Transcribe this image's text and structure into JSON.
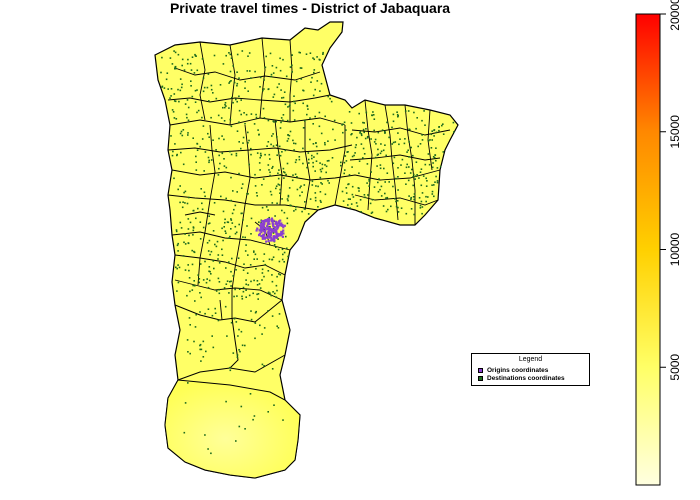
{
  "title": "Private travel times - District of Jabaquara",
  "legend": {
    "title": "Legend",
    "items": [
      {
        "label": "Origins coordinates",
        "color": "#8a3fd0"
      },
      {
        "label": "Destinations coordinates",
        "color": "#1d6b1d"
      }
    ]
  },
  "color_scale": {
    "min": 0,
    "max": 20000,
    "ticks": [
      "5000",
      "10000",
      "15000",
      "20000"
    ],
    "tick_values": [
      5000,
      10000,
      15000,
      20000
    ],
    "colors": [
      "#ffffe0",
      "#ffff66",
      "#ffd000",
      "#ff8800",
      "#ff0000"
    ]
  },
  "colors": {
    "region_fill": "#ffff66",
    "border": "#000000",
    "origin_points": "#8a3fd0",
    "destination_points": "#1d6b1d"
  }
}
